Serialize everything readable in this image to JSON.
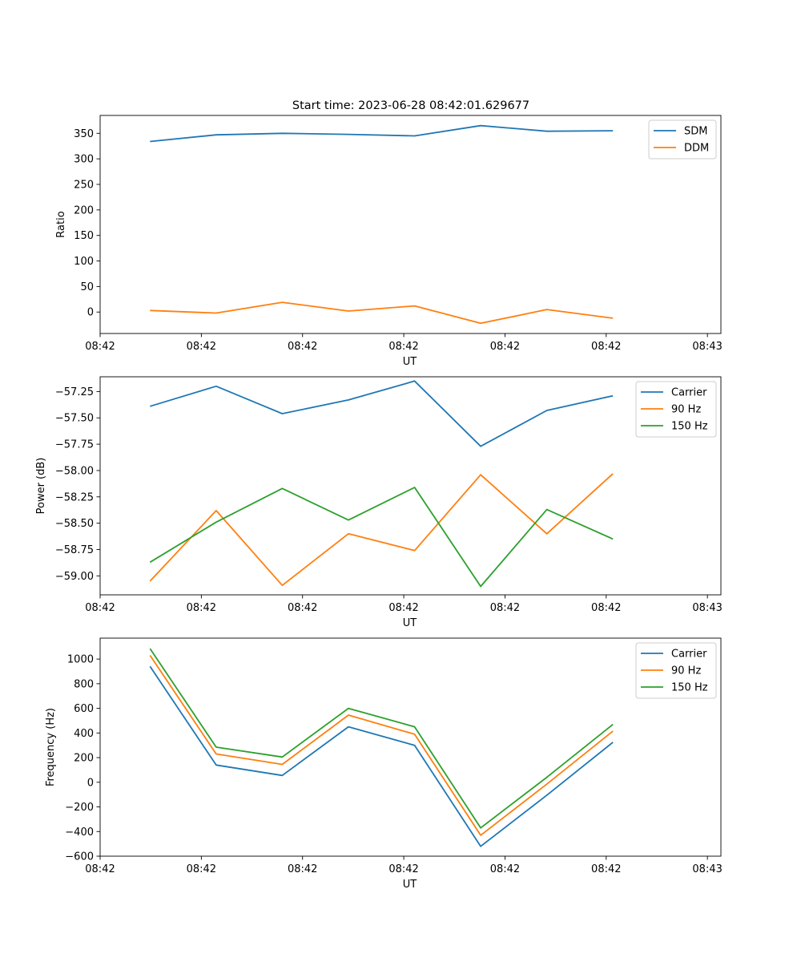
{
  "figure": {
    "title": "Start time: 2023-06-28 08:42:01.629677"
  },
  "colors": {
    "series": [
      "#1f77b4",
      "#ff7f0e",
      "#2ca02c"
    ],
    "axes": "#000000",
    "legend_border": "#cccccc"
  },
  "chart_data": [
    {
      "type": "line",
      "title": "Start time: 2023-06-28 08:42:01.629677",
      "xlabel": "UT",
      "ylabel": "Ratio",
      "xlim": [
        0,
        9.2
      ],
      "ylim": [
        -42,
        385
      ],
      "x_tick_positions": [
        0,
        1.5,
        3,
        4.5,
        6,
        7.5,
        9
      ],
      "x_tick_labels": [
        "08:42",
        "08:42",
        "08:42",
        "08:42",
        "08:42",
        "08:42",
        "08:43"
      ],
      "yticks": [
        0,
        50,
        100,
        150,
        200,
        250,
        300,
        350
      ],
      "y_tick_labels": [
        "0",
        "50",
        "100",
        "150",
        "200",
        "250",
        "300",
        "350"
      ],
      "x": [
        0.74,
        1.72,
        2.7,
        3.68,
        4.66,
        5.64,
        6.62,
        7.6
      ],
      "series": [
        {
          "name": "SDM",
          "values": [
            334,
            347,
            350,
            348,
            345,
            365,
            354,
            355
          ]
        },
        {
          "name": "DDM",
          "values": [
            3,
            -2,
            19,
            2,
            12,
            -22,
            5,
            -12
          ]
        }
      ],
      "legend": "upper right",
      "grid": false
    },
    {
      "type": "line",
      "xlabel": "UT",
      "ylabel": "Power (dB)",
      "xlim": [
        0,
        9.2
      ],
      "ylim": [
        -59.18,
        -57.11
      ],
      "x_tick_positions": [
        0,
        1.5,
        3,
        4.5,
        6,
        7.5,
        9
      ],
      "x_tick_labels": [
        "08:42",
        "08:42",
        "08:42",
        "08:42",
        "08:42",
        "08:42",
        "08:43"
      ],
      "yticks": [
        -59.0,
        -58.75,
        -58.5,
        -58.25,
        -58.0,
        -57.75,
        -57.5,
        -57.25
      ],
      "y_tick_labels": [
        "−59.00",
        "−58.75",
        "−58.50",
        "−58.25",
        "−58.00",
        "−57.75",
        "−57.50",
        "−57.25"
      ],
      "x": [
        0.74,
        1.72,
        2.7,
        3.68,
        4.66,
        5.64,
        6.62,
        7.6
      ],
      "series": [
        {
          "name": "Carrier",
          "values": [
            -57.39,
            -57.2,
            -57.46,
            -57.33,
            -57.15,
            -57.77,
            -57.43,
            -57.29
          ]
        },
        {
          "name": "90 Hz",
          "values": [
            -59.05,
            -58.38,
            -59.09,
            -58.6,
            -58.76,
            -58.04,
            -58.6,
            -58.03
          ]
        },
        {
          "name": "150 Hz",
          "values": [
            -58.87,
            -58.49,
            -58.17,
            -58.47,
            -58.16,
            -59.1,
            -58.37,
            -58.65
          ]
        }
      ],
      "legend": "upper right",
      "grid": false
    },
    {
      "type": "line",
      "xlabel": "UT",
      "ylabel": "Frequency (Hz)",
      "xlim": [
        0,
        9.2
      ],
      "ylim": [
        -600,
        1170
      ],
      "x_tick_positions": [
        0,
        1.5,
        3,
        4.5,
        6,
        7.5,
        9
      ],
      "x_tick_labels": [
        "08:42",
        "08:42",
        "08:42",
        "08:42",
        "08:42",
        "08:42",
        "08:43"
      ],
      "yticks": [
        -600,
        -400,
        -200,
        0,
        200,
        400,
        600,
        800,
        1000
      ],
      "y_tick_labels": [
        "−600",
        "−400",
        "−200",
        "0",
        "200",
        "400",
        "600",
        "800",
        "1000"
      ],
      "x": [
        0.74,
        1.72,
        2.7,
        3.68,
        4.66,
        5.64,
        6.62,
        7.6
      ],
      "series": [
        {
          "name": "Carrier",
          "values": [
            940,
            140,
            55,
            450,
            300,
            -520,
            -105,
            325
          ]
        },
        {
          "name": "90 Hz",
          "values": [
            1030,
            230,
            145,
            545,
            390,
            -430,
            -15,
            415
          ]
        },
        {
          "name": "150 Hz",
          "values": [
            1085,
            285,
            205,
            600,
            450,
            -370,
            40,
            470
          ]
        }
      ],
      "legend": "upper right",
      "grid": false
    }
  ]
}
